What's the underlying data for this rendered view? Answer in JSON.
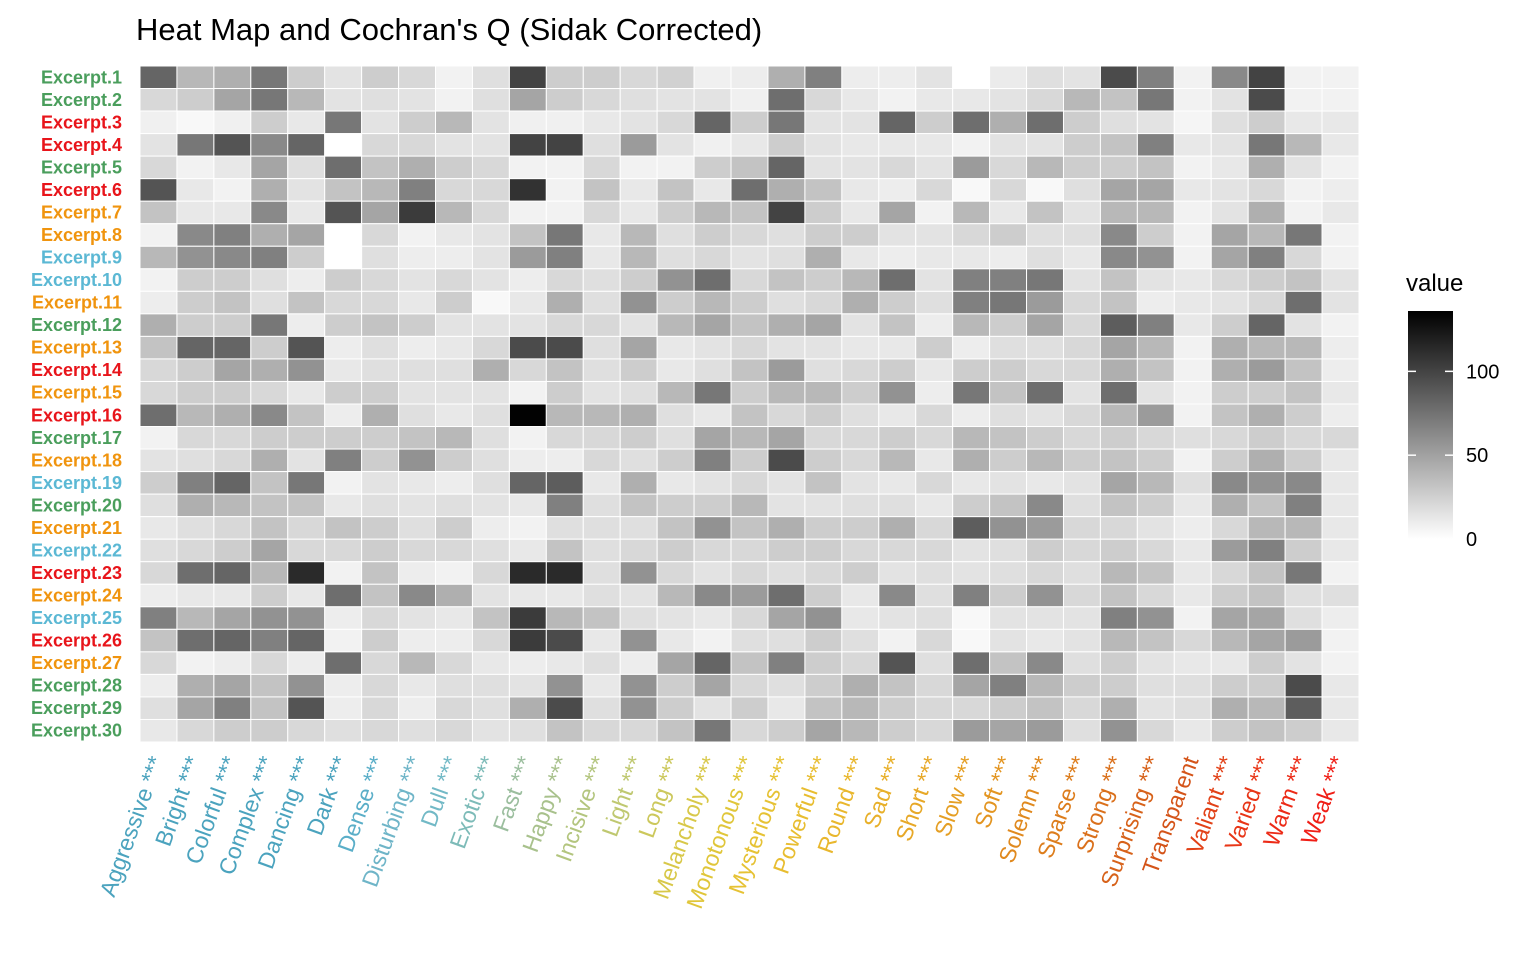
{
  "chart_data": {
    "type": "heatmap",
    "title": "Heat Map and Cochran's Q (Sidak Corrected)",
    "xlabel": "",
    "ylabel": "",
    "x_labels": [
      "Aggressive ***",
      "Bright ***",
      "Colorful ***",
      "Complex ***",
      "Dancing ***",
      "Dark ***",
      "Dense ***",
      "Disturbing ***",
      "Dull ***",
      "Exotic ***",
      "Fast ***",
      "Happy ***",
      "Incisive ***",
      "Light ***",
      "Long ***",
      "Melancholy ***",
      "Monotonous ***",
      "Mysterious ***",
      "Powerful ***",
      "Round ***",
      "Sad ***",
      "Short ***",
      "Slow ***",
      "Soft ***",
      "Solemn ***",
      "Sparse ***",
      "Strong ***",
      "Surprising ***",
      "Transparent",
      "Valiant ***",
      "Varied ***",
      "Warm ***",
      "Weak ***"
    ],
    "x_label_colors": [
      "#4BA3BE",
      "#4BA3BE",
      "#4BA3BE",
      "#4BA3BE",
      "#4BA3BE",
      "#4BA3BE",
      "#5AAEC8",
      "#6FB5C8",
      "#72B9C6",
      "#7DBBB8",
      "#9BBE9E",
      "#A8C18C",
      "#B3C57E",
      "#BFC870",
      "#CCC85C",
      "#D8C849",
      "#E0C63A",
      "#E6C234",
      "#E8BD30",
      "#E9B72D",
      "#E8B02A",
      "#E7A827",
      "#E59F24",
      "#E39521",
      "#E0891E",
      "#DD7D1C",
      "#DA701B",
      "#D7621A",
      "#D45419",
      "#E24117",
      "#E83516",
      "#EC2A16",
      "#F01E16"
    ],
    "y_labels": [
      "Excerpt.1",
      "Excerpt.2",
      "Excerpt.3",
      "Excerpt.4",
      "Excerpt.5",
      "Excerpt.6",
      "Excerpt.7",
      "Excerpt.8",
      "Excerpt.9",
      "Excerpt.10",
      "Excerpt.11",
      "Excerpt.12",
      "Excerpt.13",
      "Excerpt.14",
      "Excerpt.15",
      "Excerpt.16",
      "Excerpt.17",
      "Excerpt.18",
      "Excerpt.19",
      "Excerpt.20",
      "Excerpt.21",
      "Excerpt.22",
      "Excerpt.23",
      "Excerpt.24",
      "Excerpt.25",
      "Excerpt.26",
      "Excerpt.27",
      "Excerpt.28",
      "Excerpt.29",
      "Excerpt.30"
    ],
    "y_label_colors": [
      "#4A9E5C",
      "#4A9E5C",
      "#E8141A",
      "#E8141A",
      "#4A9E5C",
      "#E8141A",
      "#F0940E",
      "#F0940E",
      "#5BB8D4",
      "#5BB8D4",
      "#F0940E",
      "#4A9E5C",
      "#F0940E",
      "#E8141A",
      "#F0940E",
      "#E8141A",
      "#4A9E5C",
      "#F0940E",
      "#5BB8D4",
      "#4A9E5C",
      "#F0940E",
      "#5BB8D4",
      "#E8141A",
      "#F0940E",
      "#5BB8D4",
      "#E8141A",
      "#F0940E",
      "#4A9E5C",
      "#4A9E5C",
      "#4A9E5C"
    ],
    "values": [
      [
        75,
        30,
        35,
        65,
        20,
        10,
        20,
        15,
        4,
        12,
        95,
        20,
        20,
        15,
        18,
        5,
        6,
        35,
        60,
        6,
        6,
        10,
        0,
        7,
        12,
        10,
        90,
        60,
        4,
        55,
        95,
        4,
        4
      ],
      [
        15,
        20,
        40,
        65,
        30,
        10,
        12,
        10,
        4,
        12,
        40,
        20,
        15,
        12,
        10,
        10,
        5,
        70,
        15,
        8,
        4,
        8,
        8,
        10,
        15,
        30,
        25,
        65,
        4,
        10,
        90,
        4,
        4
      ],
      [
        5,
        2,
        5,
        20,
        8,
        65,
        10,
        20,
        30,
        10,
        5,
        5,
        8,
        10,
        15,
        75,
        20,
        65,
        10,
        10,
        75,
        20,
        70,
        35,
        70,
        20,
        12,
        10,
        3,
        12,
        20,
        8,
        8
      ],
      [
        10,
        65,
        85,
        55,
        75,
        0,
        15,
        15,
        10,
        10,
        95,
        95,
        12,
        45,
        10,
        5,
        8,
        20,
        10,
        8,
        8,
        8,
        4,
        10,
        10,
        20,
        25,
        60,
        8,
        10,
        65,
        30,
        8
      ],
      [
        15,
        4,
        8,
        40,
        12,
        70,
        25,
        35,
        20,
        15,
        4,
        4,
        15,
        4,
        4,
        20,
        25,
        75,
        10,
        10,
        15,
        10,
        45,
        15,
        30,
        20,
        20,
        25,
        4,
        8,
        35,
        10,
        4
      ],
      [
        85,
        8,
        4,
        35,
        10,
        25,
        30,
        60,
        15,
        15,
        105,
        4,
        25,
        8,
        25,
        8,
        70,
        35,
        25,
        8,
        6,
        15,
        2,
        15,
        2,
        12,
        40,
        40,
        8,
        10,
        15,
        4,
        6
      ],
      [
        25,
        8,
        8,
        55,
        8,
        85,
        40,
        100,
        30,
        15,
        4,
        4,
        15,
        8,
        20,
        30,
        25,
        95,
        20,
        8,
        40,
        4,
        30,
        8,
        25,
        10,
        30,
        30,
        4,
        10,
        35,
        4,
        8
      ],
      [
        4,
        55,
        60,
        35,
        40,
        0,
        15,
        4,
        8,
        10,
        25,
        65,
        8,
        30,
        12,
        20,
        15,
        12,
        20,
        20,
        10,
        10,
        15,
        20,
        12,
        12,
        55,
        20,
        4,
        40,
        30,
        65,
        4
      ],
      [
        30,
        50,
        55,
        60,
        20,
        0,
        12,
        6,
        6,
        10,
        45,
        60,
        8,
        30,
        12,
        15,
        10,
        12,
        35,
        8,
        6,
        8,
        8,
        6,
        12,
        8,
        55,
        50,
        4,
        40,
        60,
        15,
        4
      ],
      [
        4,
        20,
        20,
        12,
        6,
        20,
        15,
        10,
        15,
        10,
        6,
        15,
        12,
        20,
        50,
        70,
        15,
        25,
        20,
        30,
        70,
        10,
        60,
        60,
        65,
        10,
        25,
        10,
        8,
        15,
        20,
        25,
        10
      ],
      [
        6,
        20,
        25,
        12,
        25,
        15,
        15,
        8,
        20,
        2,
        8,
        35,
        12,
        50,
        20,
        30,
        20,
        12,
        15,
        35,
        20,
        12,
        60,
        65,
        45,
        15,
        25,
        6,
        8,
        10,
        15,
        70,
        10
      ],
      [
        35,
        20,
        20,
        65,
        6,
        20,
        25,
        20,
        10,
        10,
        10,
        15,
        15,
        10,
        30,
        40,
        25,
        35,
        40,
        10,
        25,
        6,
        30,
        20,
        40,
        15,
        80,
        60,
        8,
        20,
        75,
        10,
        4
      ],
      [
        25,
        75,
        75,
        20,
        85,
        6,
        12,
        6,
        8,
        15,
        90,
        90,
        12,
        40,
        8,
        10,
        15,
        10,
        10,
        8,
        8,
        20,
        6,
        12,
        12,
        15,
        40,
        30,
        4,
        35,
        30,
        30,
        6
      ],
      [
        15,
        20,
        40,
        35,
        50,
        8,
        12,
        12,
        12,
        35,
        15,
        25,
        12,
        20,
        8,
        12,
        25,
        45,
        12,
        15,
        20,
        8,
        20,
        20,
        15,
        15,
        35,
        25,
        4,
        35,
        45,
        25,
        6
      ],
      [
        15,
        20,
        20,
        15,
        8,
        20,
        20,
        10,
        10,
        10,
        4,
        20,
        10,
        12,
        30,
        65,
        20,
        30,
        30,
        20,
        50,
        6,
        65,
        25,
        70,
        10,
        70,
        10,
        4,
        20,
        20,
        25,
        8
      ],
      [
        70,
        30,
        35,
        55,
        25,
        6,
        35,
        12,
        8,
        12,
        135,
        30,
        30,
        35,
        12,
        8,
        25,
        15,
        20,
        12,
        8,
        15,
        6,
        12,
        10,
        15,
        30,
        45,
        4,
        25,
        35,
        20,
        6
      ],
      [
        4,
        15,
        15,
        20,
        20,
        20,
        20,
        25,
        30,
        12,
        4,
        15,
        15,
        20,
        12,
        40,
        30,
        40,
        15,
        15,
        20,
        15,
        30,
        25,
        20,
        15,
        20,
        15,
        12,
        15,
        20,
        15,
        15
      ],
      [
        10,
        12,
        15,
        35,
        10,
        60,
        20,
        50,
        20,
        12,
        6,
        6,
        15,
        12,
        20,
        60,
        20,
        90,
        20,
        15,
        30,
        8,
        35,
        20,
        30,
        20,
        25,
        20,
        4,
        20,
        35,
        20,
        8
      ],
      [
        20,
        60,
        75,
        25,
        65,
        4,
        10,
        8,
        6,
        12,
        75,
        80,
        8,
        35,
        8,
        10,
        15,
        10,
        25,
        10,
        8,
        15,
        8,
        10,
        8,
        10,
        40,
        30,
        12,
        55,
        50,
        55,
        8
      ],
      [
        12,
        35,
        30,
        25,
        25,
        8,
        12,
        10,
        12,
        10,
        8,
        60,
        12,
        25,
        20,
        20,
        30,
        10,
        10,
        12,
        12,
        8,
        20,
        25,
        55,
        12,
        25,
        20,
        8,
        35,
        25,
        60,
        8
      ],
      [
        8,
        12,
        15,
        25,
        15,
        25,
        20,
        12,
        20,
        6,
        4,
        12,
        12,
        12,
        25,
        50,
        25,
        35,
        20,
        20,
        35,
        15,
        80,
        50,
        45,
        15,
        15,
        10,
        6,
        15,
        30,
        30,
        8
      ],
      [
        12,
        15,
        20,
        40,
        15,
        15,
        20,
        15,
        15,
        12,
        8,
        25,
        12,
        15,
        20,
        15,
        15,
        20,
        20,
        15,
        15,
        15,
        10,
        12,
        20,
        15,
        20,
        15,
        8,
        45,
        60,
        20,
        8
      ],
      [
        15,
        70,
        75,
        30,
        110,
        4,
        25,
        6,
        4,
        15,
        110,
        110,
        12,
        50,
        15,
        10,
        15,
        12,
        15,
        20,
        10,
        12,
        10,
        12,
        15,
        12,
        30,
        25,
        8,
        15,
        25,
        65,
        4
      ],
      [
        6,
        8,
        8,
        20,
        8,
        70,
        25,
        55,
        35,
        10,
        8,
        8,
        12,
        10,
        30,
        55,
        45,
        70,
        20,
        8,
        55,
        12,
        60,
        20,
        50,
        15,
        25,
        15,
        8,
        20,
        25,
        12,
        12
      ],
      [
        60,
        30,
        40,
        50,
        50,
        6,
        15,
        10,
        8,
        25,
        100,
        30,
        25,
        12,
        10,
        8,
        15,
        40,
        50,
        8,
        10,
        12,
        2,
        10,
        10,
        10,
        60,
        50,
        4,
        40,
        40,
        12,
        6
      ],
      [
        25,
        70,
        75,
        60,
        75,
        4,
        20,
        6,
        6,
        15,
        100,
        90,
        8,
        50,
        8,
        4,
        12,
        12,
        20,
        12,
        4,
        15,
        2,
        10,
        8,
        10,
        30,
        25,
        15,
        30,
        40,
        45,
        4
      ],
      [
        15,
        4,
        6,
        15,
        6,
        70,
        15,
        30,
        15,
        8,
        6,
        8,
        12,
        6,
        40,
        75,
        25,
        60,
        20,
        15,
        85,
        12,
        70,
        25,
        55,
        12,
        20,
        10,
        8,
        8,
        20,
        10,
        4
      ],
      [
        6,
        35,
        40,
        25,
        50,
        6,
        15,
        8,
        12,
        12,
        10,
        50,
        8,
        50,
        20,
        40,
        15,
        12,
        20,
        35,
        25,
        15,
        40,
        60,
        30,
        20,
        20,
        12,
        12,
        20,
        20,
        90,
        8
      ],
      [
        12,
        40,
        60,
        25,
        85,
        6,
        15,
        6,
        15,
        12,
        35,
        90,
        12,
        50,
        20,
        10,
        20,
        8,
        25,
        30,
        20,
        15,
        15,
        20,
        25,
        15,
        35,
        10,
        12,
        35,
        30,
        80,
        8
      ],
      [
        8,
        15,
        20,
        20,
        15,
        12,
        15,
        12,
        15,
        10,
        12,
        25,
        15,
        15,
        25,
        65,
        15,
        20,
        40,
        30,
        20,
        15,
        45,
        40,
        45,
        12,
        50,
        15,
        8,
        20,
        25,
        20,
        8
      ]
    ],
    "color_scale": {
      "low_color": "#ffffff",
      "high_color": "#000000",
      "min": 0,
      "max": 136
    },
    "legend": {
      "title": "value",
      "ticks": [
        0,
        50,
        100
      ],
      "position": "right"
    },
    "grid": false
  }
}
